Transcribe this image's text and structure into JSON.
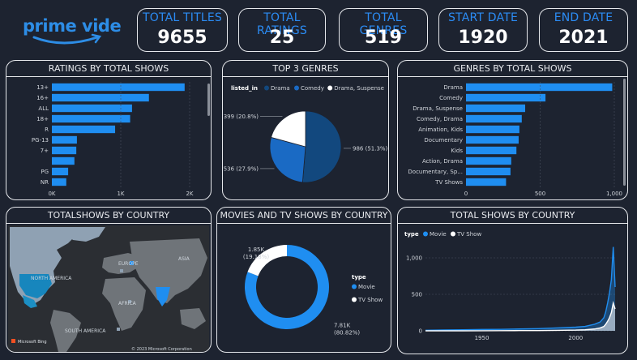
{
  "logo": {
    "brand": "prime video"
  },
  "kpis": [
    {
      "title": "TOTAL TITLES",
      "value": "9655"
    },
    {
      "title": "TOTAL RATINGS",
      "value": "25"
    },
    {
      "title": "TOTAL GENRES",
      "value": "519"
    },
    {
      "title": "START DATE",
      "value": "1920"
    },
    {
      "title": "END DATE",
      "value": "2021"
    }
  ],
  "colors": {
    "accent": "#1f8ef1",
    "dark_blue": "#12487e",
    "mid_blue": "#1a6ac4",
    "background": "#1d2330"
  },
  "panels": {
    "ratings_title": "RATINGS BY TOTAL SHOWS",
    "top3_title": "TOP 3 GENRES",
    "genres_title": "GENRES BY TOTAL SHOWS",
    "country_map_title": "TOTALSHOWS BY COUNTRY",
    "movies_tv_title": "MOVIES AND TV SHOWS BY COUNTRY",
    "total_country_title": "TOTAL SHOWS BY COUNTRY"
  },
  "map": {
    "labels": [
      "NORTH AMERICA",
      "EUROPE",
      "ASIA",
      "AFRICA",
      "SOUTH AMERICA"
    ],
    "attribution": "© 2023 Microsoft Corporation",
    "bing": "Microsoft Bing"
  },
  "chart_data": [
    {
      "id": "ratings",
      "type": "bar",
      "orientation": "horizontal",
      "categories": [
        "13+",
        "16+",
        "ALL",
        "18+",
        "R",
        "PG-13",
        "7+",
        "",
        "PG",
        "NR"
      ],
      "values": [
        2120,
        1550,
        1280,
        1250,
        1010,
        400,
        390,
        360,
        260,
        230
      ],
      "xticks": [
        "0K",
        "1K",
        "2K"
      ],
      "xlim": [
        0,
        2200
      ]
    },
    {
      "id": "top3",
      "type": "pie",
      "legend_title": "listed_in",
      "legend_position": "top",
      "slices": [
        {
          "name": "Drama",
          "value": 986,
          "label": "986 (51.3%)",
          "color": "#12487e"
        },
        {
          "name": "Comedy",
          "value": 536,
          "label": "536 (27.9%)",
          "color": "#1a6ac4"
        },
        {
          "name": "Drama, Suspense",
          "value": 399,
          "label": "399 (20.8%)",
          "color": "#ffffff"
        }
      ]
    },
    {
      "id": "genres",
      "type": "bar",
      "orientation": "horizontal",
      "categories": [
        "Drama",
        "Comedy",
        "Drama, Suspense",
        "Comedy, Drama",
        "Animation, Kids",
        "Documentary",
        "Kids",
        "Action, Drama",
        "Documentary, Sp...",
        "TV Shows"
      ],
      "values": [
        986,
        536,
        399,
        376,
        360,
        355,
        340,
        305,
        300,
        270
      ],
      "xticks": [
        "0",
        "500",
        "1,000"
      ],
      "xlim": [
        0,
        1000
      ]
    },
    {
      "id": "movies_tv",
      "type": "pie",
      "subtype": "donut",
      "legend_title": "type",
      "legend_position": "right",
      "slices": [
        {
          "name": "Movie",
          "value": 7810,
          "label_value": "7.81K",
          "label_pct": "(80.82%)",
          "color": "#1f8ef1"
        },
        {
          "name": "TV Show",
          "value": 1850,
          "label_value": "1.85K",
          "label_pct": "(19.18%)",
          "color": "#ffffff"
        }
      ]
    },
    {
      "id": "shows_by_year",
      "type": "area",
      "legend_title": "type",
      "legend_position": "top-left",
      "xticks": [
        "1950",
        "2000"
      ],
      "yticks": [
        "0",
        "500",
        "1,000"
      ],
      "xlim": [
        1920,
        2021
      ],
      "ylim": [
        0,
        1200
      ],
      "series": [
        {
          "name": "Movie",
          "color": "#1f8ef1",
          "x": [
            1920,
            1930,
            1940,
            1950,
            1960,
            1970,
            1980,
            1990,
            2000,
            2005,
            2010,
            2013,
            2015,
            2016,
            2017,
            2018,
            2019,
            2020,
            2021
          ],
          "values": [
            8,
            12,
            15,
            18,
            20,
            25,
            30,
            40,
            50,
            60,
            90,
            120,
            180,
            260,
            380,
            520,
            700,
            1150,
            600
          ]
        },
        {
          "name": "TV Show",
          "color": "#ffffff",
          "x": [
            1920,
            1930,
            1940,
            1950,
            1960,
            1970,
            1980,
            1990,
            2000,
            2005,
            2010,
            2013,
            2015,
            2016,
            2017,
            2018,
            2019,
            2020,
            2021
          ],
          "values": [
            0,
            0,
            0,
            1,
            2,
            3,
            4,
            6,
            10,
            15,
            25,
            40,
            60,
            90,
            130,
            180,
            250,
            380,
            300
          ]
        }
      ]
    }
  ]
}
